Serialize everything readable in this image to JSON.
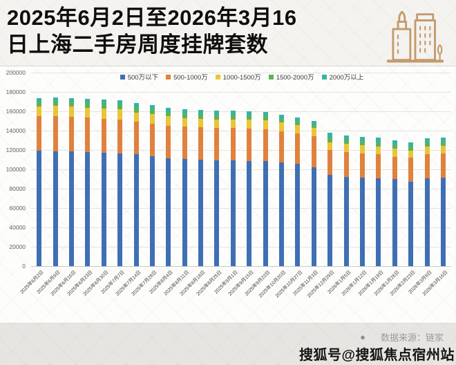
{
  "header": {
    "title_line1": "2025年6月2日至2026年3月16",
    "title_line2": "日上海二手房周度挂牌套数"
  },
  "footer": {
    "source_bullet": "●",
    "source_text": "数据来源：链家",
    "watermark_text": "搜狐号@搜狐焦点宿州站"
  },
  "colors": {
    "blue": "#3e6fb4",
    "orange": "#e0813d",
    "yellow": "#e9c636",
    "green": "#5cb25c",
    "teal": "#34b5a4",
    "icon_accent": "#c49a6c"
  },
  "chart_data": {
    "type": "bar",
    "stacked": true,
    "title": "2025年6月2日至2026年3月16日上海二手房周度挂牌套数",
    "xlabel": "",
    "ylabel": "",
    "ylim": [
      0,
      200000
    ],
    "yticks": [
      0,
      20000,
      40000,
      60000,
      80000,
      100000,
      120000,
      140000,
      160000,
      180000,
      200000
    ],
    "grid": true,
    "legend_position": "top",
    "categories": [
      "2025年6月2日",
      "2025年6月9日",
      "2025年6月16日",
      "2025年6月23日",
      "2025年6月30日",
      "2025年7月7日",
      "2025年7月14日",
      "2025年7月28日",
      "2025年8月4日",
      "2025年8月11日",
      "2025年8月18日",
      "2025年8月25日",
      "2025年9月1日",
      "2025年9月15日",
      "2025年9月22日",
      "2025年10月20日",
      "2025年10月27日",
      "2025年11月3日",
      "2025年12月29日",
      "2026年1月5日",
      "2026年1月12日",
      "2026年1月19日",
      "2026年1月26日",
      "2026年2月23日",
      "2026年3月9日",
      "2026年3月16日"
    ],
    "series": [
      {
        "name": "500万以下",
        "color_key": "blue",
        "values": [
          119000,
          118300,
          118300,
          117900,
          117100,
          116600,
          115900,
          113600,
          111200,
          110700,
          110200,
          109500,
          109500,
          108800,
          108300,
          107100,
          105900,
          102400,
          94100,
          92100,
          91200,
          90500,
          89800,
          87400,
          90500,
          91200
        ]
      },
      {
        "name": "500-1000万",
        "color_key": "orange",
        "values": [
          35800,
          36500,
          35800,
          35700,
          35300,
          35000,
          33400,
          33300,
          34000,
          33400,
          33400,
          33400,
          33400,
          33300,
          33300,
          32200,
          31500,
          32100,
          26100,
          25800,
          25500,
          25000,
          23300,
          25000,
          25000,
          25000
        ]
      },
      {
        "name": "1000-1500万",
        "color_key": "yellow",
        "values": [
          10200,
          10700,
          10900,
          10000,
          10700,
          10300,
          9500,
          10200,
          9600,
          9000,
          8800,
          8700,
          8700,
          9100,
          9100,
          9000,
          8500,
          8400,
          7900,
          8300,
          8300,
          8300,
          8300,
          7100,
          8300,
          8100
        ]
      },
      {
        "name": "1500-2000万",
        "color_key": "green",
        "values": [
          5200,
          5200,
          5200,
          5500,
          5300,
          5500,
          5500,
          4800,
          4700,
          4800,
          4700,
          4800,
          4800,
          4700,
          4800,
          4100,
          4100,
          3500,
          4800,
          4300,
          4100,
          4300,
          4300,
          4300,
          4100,
          4300
        ]
      },
      {
        "name": "2000万以上",
        "color_key": "teal",
        "values": [
          3600,
          3600,
          3600,
          4000,
          3700,
          4000,
          4100,
          4700,
          4100,
          4000,
          4100,
          4300,
          4300,
          4300,
          4000,
          4000,
          3600,
          3600,
          5200,
          4700,
          4700,
          4800,
          4100,
          4300,
          4200,
          4300
        ]
      }
    ]
  }
}
